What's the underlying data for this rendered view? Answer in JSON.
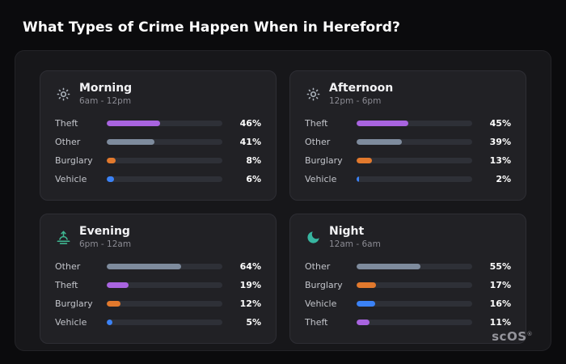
{
  "page": {
    "title": "What Types of Crime Happen When in Hereford?"
  },
  "brand": {
    "name": "scOS",
    "registered": "®"
  },
  "palette": {
    "theft": "#a964e0",
    "other": "#7e8b9d",
    "burglary": "#e2792d",
    "vehicle": "#3b82f6",
    "sun_icon": "#aeb6bf",
    "sunset_icon": "#3fb892",
    "moon_icon": "#37b5a0",
    "card_background": "#212125",
    "panel_background": "#17171a",
    "page_background": "#0b0b0d"
  },
  "chart_data": [
    {
      "type": "bar",
      "title": "Morning",
      "subtitle": "6am - 12pm",
      "icon": "sun-icon",
      "unit": "%",
      "xlim": [
        0,
        100
      ],
      "categories": [
        "Theft",
        "Other",
        "Burglary",
        "Vehicle"
      ],
      "values": [
        46,
        41,
        8,
        6
      ],
      "value_labels": [
        "46%",
        "41%",
        "8%",
        "6%"
      ],
      "colors": [
        "#a964e0",
        "#7e8b9d",
        "#e2792d",
        "#3b82f6"
      ]
    },
    {
      "type": "bar",
      "title": "Afternoon",
      "subtitle": "12pm - 6pm",
      "icon": "sun-icon",
      "unit": "%",
      "xlim": [
        0,
        100
      ],
      "categories": [
        "Theft",
        "Other",
        "Burglary",
        "Vehicle"
      ],
      "values": [
        45,
        39,
        13,
        2
      ],
      "value_labels": [
        "45%",
        "39%",
        "13%",
        "2%"
      ],
      "colors": [
        "#a964e0",
        "#7e8b9d",
        "#e2792d",
        "#3b82f6"
      ]
    },
    {
      "type": "bar",
      "title": "Evening",
      "subtitle": "6pm - 12am",
      "icon": "sunset-icon",
      "unit": "%",
      "xlim": [
        0,
        100
      ],
      "categories": [
        "Other",
        "Theft",
        "Burglary",
        "Vehicle"
      ],
      "values": [
        64,
        19,
        12,
        5
      ],
      "value_labels": [
        "64%",
        "19%",
        "12%",
        "5%"
      ],
      "colors": [
        "#7e8b9d",
        "#a964e0",
        "#e2792d",
        "#3b82f6"
      ]
    },
    {
      "type": "bar",
      "title": "Night",
      "subtitle": "12am - 6am",
      "icon": "moon-icon",
      "unit": "%",
      "xlim": [
        0,
        100
      ],
      "categories": [
        "Other",
        "Burglary",
        "Vehicle",
        "Theft"
      ],
      "values": [
        55,
        17,
        16,
        11
      ],
      "value_labels": [
        "55%",
        "17%",
        "16%",
        "11%"
      ],
      "colors": [
        "#7e8b9d",
        "#e2792d",
        "#3b82f6",
        "#a964e0"
      ]
    }
  ]
}
